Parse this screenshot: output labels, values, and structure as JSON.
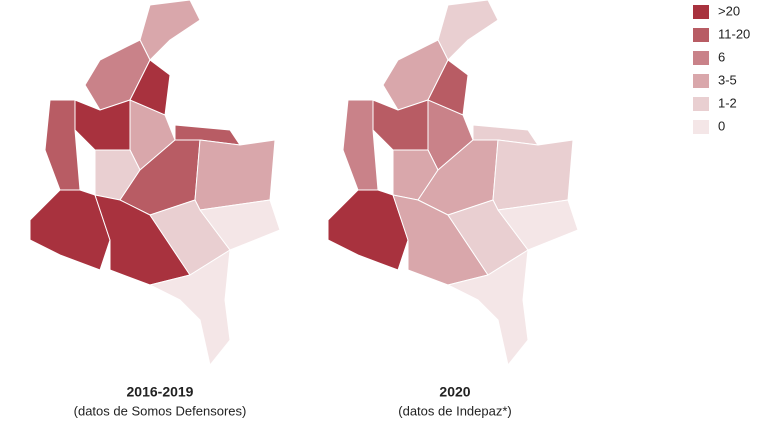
{
  "legend": {
    "items": [
      {
        "label": ">20",
        "color": "#a8323e"
      },
      {
        "label": "11-20",
        "color": "#b85c64"
      },
      {
        "label": "6",
        "color": "#c98289"
      },
      {
        "label": "3-5",
        "color": "#d9a7ab"
      },
      {
        "label": "1-2",
        "color": "#e9cfd1"
      },
      {
        "label": "0",
        "color": "#f4e6e7"
      }
    ]
  },
  "maps": [
    {
      "title": "2016-2019",
      "subtitle": "(datos de Somos Defensores)"
    },
    {
      "title": "2020",
      "subtitle": "(datos de Indepaz*)"
    }
  ]
}
